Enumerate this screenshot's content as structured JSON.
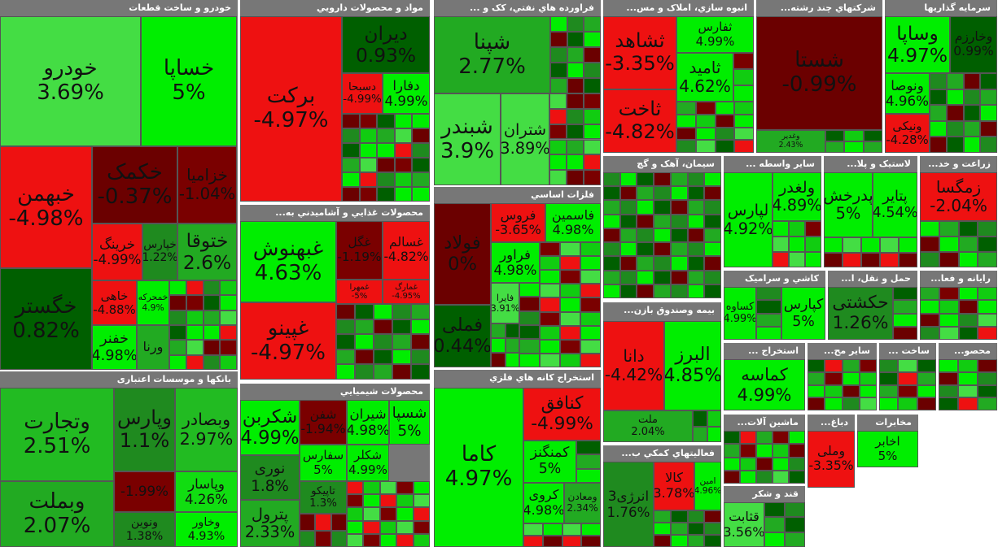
{
  "sectors": [
    {
      "title": "خودرو و ساخت قطعات",
      "tiles": [
        {
          "name": "خودرو",
          "change": "3.69%",
          "color": "#44dd44"
        },
        {
          "name": "خساپا",
          "change": "5%",
          "color": "#00ee00"
        },
        {
          "name": "خبهمن",
          "change": "-4.98%",
          "color": "#ee1111"
        },
        {
          "name": "خکمک",
          "change": "-0.37%",
          "color": "#6b0000"
        },
        {
          "name": "خزامیا",
          "change": "-1.04%",
          "color": "#7a0000"
        },
        {
          "name": "خگستر",
          "change": "0.82%",
          "color": "#005f00"
        },
        {
          "name": "خرینگ",
          "change": "-4.99%",
          "color": "#ee1111"
        },
        {
          "name": "خپارس",
          "change": "1.22%",
          "color": "#1f8a1f"
        },
        {
          "name": "ختوقا",
          "change": "2.6%",
          "color": "#22aa22"
        },
        {
          "name": "خاهی",
          "change": "-4.88%",
          "color": "#ee1111"
        },
        {
          "name": "خمحرکه",
          "change": "4.9%",
          "color": "#00ee00"
        },
        {
          "name": "خفنر",
          "change": "4.98%",
          "color": "#00ee00"
        },
        {
          "name": "ورنا",
          "change": "",
          "color": "#22aa22"
        }
      ]
    },
    {
      "title": "بانکها و موسسات اعتباری",
      "tiles": [
        {
          "name": "وتجارت",
          "change": "2.51%",
          "color": "#22bb22"
        },
        {
          "name": "وبملت",
          "change": "2.07%",
          "color": "#22aa22"
        },
        {
          "name": "وپارس",
          "change": "1.1%",
          "color": "#1f8a1f"
        },
        {
          "name": "وبصادر",
          "change": "2.97%",
          "color": "#22bb22"
        },
        {
          "name": "",
          "change": "-1.99%",
          "color": "#7a0000"
        },
        {
          "name": "وپاسار",
          "change": "4.26%",
          "color": "#11dd11"
        },
        {
          "name": "ونوین",
          "change": "1.38%",
          "color": "#1f8a1f"
        },
        {
          "name": "وخاور",
          "change": "4.93%",
          "color": "#00ee00"
        }
      ]
    },
    {
      "title": "مواد و محصولات دارويي",
      "tiles": [
        {
          "name": "برکت",
          "change": "-4.97%",
          "color": "#ee1111"
        },
        {
          "name": "دیران",
          "change": "0.93%",
          "color": "#005f00"
        },
        {
          "name": "دسبحا",
          "change": "-4.99%",
          "color": "#ee1111"
        },
        {
          "name": "دفارا",
          "change": "4.99%",
          "color": "#00ee00"
        }
      ]
    },
    {
      "title": "محصولات غذايي و آشاميدني به...",
      "tiles": [
        {
          "name": "غبهنوش",
          "change": "4.63%",
          "color": "#00ee00"
        },
        {
          "name": "غپینو",
          "change": "-4.97%",
          "color": "#ee1111"
        },
        {
          "name": "غگل",
          "change": "-1.19%",
          "color": "#7a0000"
        },
        {
          "name": "غسالم",
          "change": "-4.82%",
          "color": "#ee1111"
        },
        {
          "name": "غمهرا",
          "change": "-5%",
          "color": "#ee1111"
        },
        {
          "name": "غمارگ",
          "change": "-4.95%",
          "color": "#ee1111"
        }
      ]
    },
    {
      "title": "محصولات شيميايي",
      "tiles": [
        {
          "name": "شکربن",
          "change": "4.99%",
          "color": "#00ee00"
        },
        {
          "name": "نوری",
          "change": "1.8%",
          "color": "#1f8a1f"
        },
        {
          "name": "پترول",
          "change": "2.33%",
          "color": "#22aa22"
        },
        {
          "name": "شفن",
          "change": "-1.94%",
          "color": "#7a0000"
        },
        {
          "name": "شیران",
          "change": "4.98%",
          "color": "#00ee00"
        },
        {
          "name": "شسپا",
          "change": "5%",
          "color": "#00ee00"
        },
        {
          "name": "سفارس",
          "change": "5%",
          "color": "#00ee00"
        },
        {
          "name": "شکلر",
          "change": "4.99%",
          "color": "#00ee00"
        },
        {
          "name": "تاپیکو",
          "change": "1.3%",
          "color": "#1f8a1f"
        }
      ]
    },
    {
      "title": "فراورده هاي نفتي، کک و ...",
      "tiles": [
        {
          "name": "شپنا",
          "change": "2.77%",
          "color": "#22aa22"
        },
        {
          "name": "شبندر",
          "change": "3.9%",
          "color": "#44dd44"
        },
        {
          "name": "شتران",
          "change": "3.89%",
          "color": "#44dd44"
        }
      ]
    },
    {
      "title": "فلزات اساسي",
      "tiles": [
        {
          "name": "فولاد",
          "change": "0%",
          "color": "#6b0000"
        },
        {
          "name": "فملی",
          "change": "0.44%",
          "color": "#005f00"
        },
        {
          "name": "فروس",
          "change": "-3.65%",
          "color": "#ee1111"
        },
        {
          "name": "فاسمین",
          "change": "4.98%",
          "color": "#00ee00"
        },
        {
          "name": "فراور",
          "change": "4.98%",
          "color": "#00ee00"
        },
        {
          "name": "فایرا",
          "change": "3.91%",
          "color": "#44dd44"
        }
      ]
    },
    {
      "title": "استخراج کانه هاي فلزي",
      "tiles": [
        {
          "name": "کاما",
          "change": "4.97%",
          "color": "#00ee00"
        },
        {
          "name": "کنافق",
          "change": "-4.99%",
          "color": "#ee1111"
        },
        {
          "name": "کمنگنز",
          "change": "5%",
          "color": "#00ee00"
        },
        {
          "name": "کروی",
          "change": "4.98%",
          "color": "#00ee00"
        },
        {
          "name": "ومعادن",
          "change": "2.34%",
          "color": "#22aa22"
        }
      ]
    },
    {
      "title": "انبوه سازي، املاک و مس...",
      "tiles": [
        {
          "name": "ثشاهد",
          "change": "-3.35%",
          "color": "#ee1111"
        },
        {
          "name": "ثاخت",
          "change": "-4.82%",
          "color": "#ee1111"
        },
        {
          "name": "ثفارس",
          "change": "4.99%",
          "color": "#00ee00"
        },
        {
          "name": "ثامید",
          "change": "4.62%",
          "color": "#00ee00"
        }
      ]
    },
    {
      "title": "شرکتهاي چند رشته...",
      "tiles": [
        {
          "name": "شستا",
          "change": "-0.99%",
          "color": "#6b0000"
        },
        {
          "name": "وغدیر",
          "change": "2.43%",
          "color": "#22aa22"
        }
      ]
    },
    {
      "title": "سرمايه گذاريها",
      "tiles": [
        {
          "name": "وساپا",
          "change": "4.97%",
          "color": "#00ee00"
        },
        {
          "name": "وخارزم",
          "change": "0.99%",
          "color": "#005f00"
        },
        {
          "name": "ونوصا",
          "change": "4.96%",
          "color": "#00ee00"
        },
        {
          "name": "ونیکی",
          "change": "-4.28%",
          "color": "#ee1111"
        }
      ]
    },
    {
      "title": "سيمان، آهک و گچ",
      "tiles": []
    },
    {
      "title": "ساير واسطه ...",
      "tiles": [
        {
          "name": "لپارس",
          "change": "4.92%",
          "color": "#00ee00"
        },
        {
          "name": "ولغدر",
          "change": "4.89%",
          "color": "#00ee00"
        }
      ]
    },
    {
      "title": "لاستيک و پلا...",
      "tiles": [
        {
          "name": "پدرخش",
          "change": "5%",
          "color": "#00ee00"
        },
        {
          "name": "پتایر",
          "change": "4.54%",
          "color": "#00ee00"
        }
      ]
    },
    {
      "title": "زراعت و خد...",
      "tiles": [
        {
          "name": "زمگسا",
          "change": "-2.04%",
          "color": "#ee1111"
        }
      ]
    },
    {
      "title": "بيمه وصندوق بازن...",
      "tiles": [
        {
          "name": "دانا",
          "change": "-4.42%",
          "color": "#ee1111"
        },
        {
          "name": "البرز",
          "change": "4.85%",
          "color": "#00ee00"
        },
        {
          "name": "ملت",
          "change": "2.04%",
          "color": "#22aa22"
        }
      ]
    },
    {
      "title": "فعاليتهاي کمکي ب...",
      "tiles": [
        {
          "name": "انرژی3",
          "change": "1.76%",
          "color": "#1f8a1f"
        },
        {
          "name": "کالا",
          "change": "3.78%",
          "color": "#ee1111"
        },
        {
          "name": "امین",
          "change": "4.96%",
          "color": "#00ee00"
        }
      ]
    },
    {
      "title": "کاشي و سراميک",
      "tiles": [
        {
          "name": "کساوه",
          "change": "4.99%",
          "color": "#00ee00"
        },
        {
          "name": "کپارس",
          "change": "5%",
          "color": "#00ee00"
        }
      ]
    },
    {
      "title": "حمل و نقل، ا...",
      "tiles": [
        {
          "name": "حکشتی",
          "change": "1.26%",
          "color": "#1f8a1f"
        }
      ]
    },
    {
      "title": "رايانه و فعا...",
      "tiles": []
    },
    {
      "title": "استخراج ...",
      "tiles": [
        {
          "name": "کماسه",
          "change": "4.99%",
          "color": "#00ee00"
        }
      ]
    },
    {
      "title": "ساير مح...",
      "tiles": []
    },
    {
      "title": "ساخت ...",
      "tiles": []
    },
    {
      "title": "محصو...",
      "tiles": []
    },
    {
      "title": "ماشين آلات...",
      "tiles": []
    },
    {
      "title": "قند و شکر",
      "tiles": [
        {
          "name": "قثابت",
          "change": "3.56%",
          "color": "#44dd44"
        }
      ]
    },
    {
      "title": "دباغ...",
      "tiles": [
        {
          "name": "وملی",
          "change": "-3.35%",
          "color": "#ee1111"
        }
      ]
    },
    {
      "title": "مخابرات",
      "tiles": [
        {
          "name": "اخابر",
          "change": "5%",
          "color": "#00ee00"
        }
      ]
    }
  ]
}
